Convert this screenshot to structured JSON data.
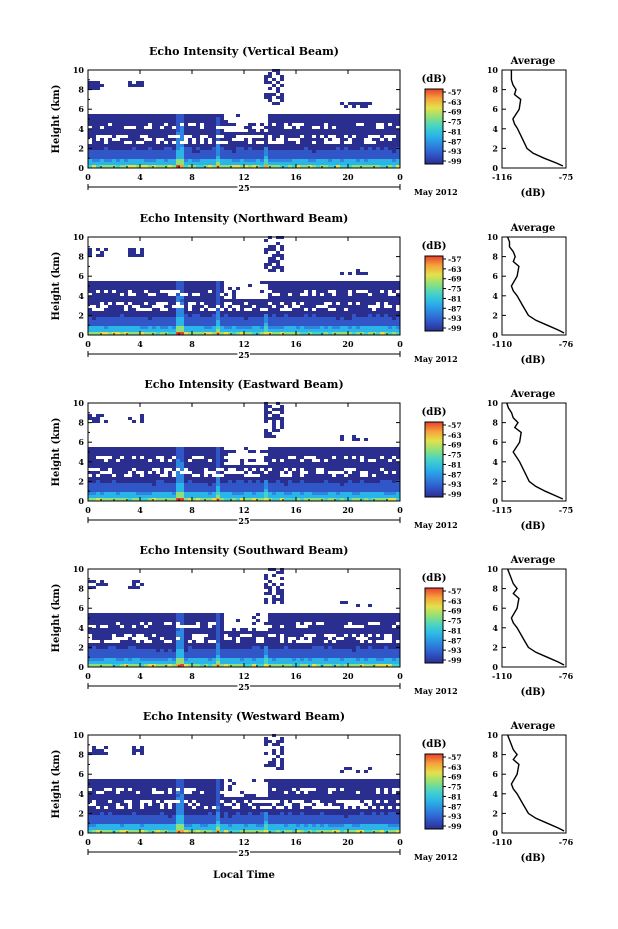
{
  "figure": {
    "ylabel": "Height (km)",
    "xlabel": "Local Time",
    "date_day": "25",
    "date_label": "May 2012",
    "colorbar_unit": "(dB)",
    "colorbar_ticks": [
      "-57",
      "-63",
      "-69",
      "-75",
      "-81",
      "-87",
      "-93",
      "-99"
    ],
    "average_title": "Average",
    "average_xlabel": "(dB)",
    "colormap": [
      "#2a2f8f",
      "#3056c8",
      "#2d86e0",
      "#2bb4e8",
      "#45d3c8",
      "#8fe07a",
      "#e4e14a",
      "#f5a23a",
      "#e8402e"
    ]
  },
  "chart_data": [
    {
      "type": "heatmap",
      "title": "Echo Intensity (Vertical Beam)",
      "xlabel": "Local Time",
      "ylabel": "Height (km)",
      "x_ticks": [
        "0",
        "4",
        "8",
        "12",
        "16",
        "20",
        "0"
      ],
      "y_ticks": [
        "0",
        "2",
        "4",
        "6",
        "8",
        "10"
      ],
      "xlim": [
        0,
        24
      ],
      "ylim": [
        0,
        10
      ],
      "colorbar_label": "(dB)",
      "colorbar_range": [
        -99,
        -57
      ],
      "grid": false
    },
    {
      "type": "line",
      "title": "Average",
      "xlabel": "(dB)",
      "x_ticks": [
        "-116",
        "-75"
      ],
      "xlim": [
        -116,
        -75
      ],
      "ylim": [
        0,
        10
      ],
      "x": [
        -110,
        -110,
        -110,
        -109,
        -107,
        -108,
        -104,
        -105,
        -109,
        -108,
        -106,
        -103,
        -100,
        -96,
        -89,
        -81,
        -77
      ],
      "y": [
        10,
        9.5,
        9,
        8.5,
        8,
        7.5,
        7,
        6,
        5,
        4.5,
        4,
        3,
        2,
        1.5,
        1,
        0.5,
        0.2
      ]
    },
    {
      "type": "heatmap",
      "title": "Echo Intensity (Northward Beam)",
      "xlabel": "Local Time",
      "ylabel": "Height (km)",
      "x_ticks": [
        "0",
        "4",
        "8",
        "12",
        "16",
        "20",
        "0"
      ],
      "y_ticks": [
        "0",
        "2",
        "4",
        "6",
        "8",
        "10"
      ],
      "xlim": [
        0,
        24
      ],
      "ylim": [
        0,
        10
      ],
      "colorbar_label": "(dB)",
      "colorbar_range": [
        -99,
        -57
      ],
      "grid": false
    },
    {
      "type": "line",
      "title": "Average",
      "xlabel": "(dB)",
      "x_ticks": [
        "-110",
        "-76"
      ],
      "xlim": [
        -110,
        -76
      ],
      "ylim": [
        0,
        10
      ],
      "x": [
        -107,
        -106,
        -106,
        -104,
        -103,
        -104,
        -101,
        -102,
        -105,
        -104,
        -102,
        -99,
        -96,
        -92,
        -86,
        -80,
        -77
      ],
      "y": [
        10,
        9.5,
        9,
        8.5,
        8,
        7.5,
        7,
        6,
        5,
        4.5,
        4,
        3,
        2,
        1.5,
        1,
        0.5,
        0.2
      ]
    },
    {
      "type": "heatmap",
      "title": "Echo Intensity (Eastward Beam)",
      "xlabel": "Local Time",
      "ylabel": "Height (km)",
      "x_ticks": [
        "0",
        "4",
        "8",
        "12",
        "16",
        "20",
        "0"
      ],
      "y_ticks": [
        "0",
        "2",
        "4",
        "6",
        "8",
        "10"
      ],
      "xlim": [
        0,
        24
      ],
      "ylim": [
        0,
        10
      ],
      "colorbar_label": "(dB)",
      "colorbar_range": [
        -99,
        -57
      ],
      "grid": false
    },
    {
      "type": "line",
      "title": "Average",
      "xlabel": "(dB)",
      "x_ticks": [
        "-115",
        "-75"
      ],
      "xlim": [
        -115,
        -75
      ],
      "ylim": [
        0,
        10
      ],
      "x": [
        -112,
        -111,
        -109,
        -108,
        -105,
        -107,
        -103,
        -104,
        -108,
        -106,
        -104,
        -101,
        -98,
        -94,
        -88,
        -81,
        -77
      ],
      "y": [
        10,
        9.5,
        9,
        8.5,
        8,
        7.5,
        7,
        6,
        5,
        4.5,
        4,
        3,
        2,
        1.5,
        1,
        0.5,
        0.2
      ]
    },
    {
      "type": "heatmap",
      "title": "Echo Intensity (Southward Beam)",
      "xlabel": "Local Time",
      "ylabel": "Height (km)",
      "x_ticks": [
        "0",
        "4",
        "8",
        "12",
        "16",
        "20",
        "0"
      ],
      "y_ticks": [
        "0",
        "2",
        "4",
        "6",
        "8",
        "10"
      ],
      "xlim": [
        0,
        24
      ],
      "ylim": [
        0,
        10
      ],
      "colorbar_label": "(dB)",
      "colorbar_range": [
        -99,
        -57
      ],
      "grid": false
    },
    {
      "type": "line",
      "title": "Average",
      "xlabel": "(dB)",
      "x_ticks": [
        "-110",
        "-76"
      ],
      "xlim": [
        -110,
        -76
      ],
      "ylim": [
        0,
        10
      ],
      "x": [
        -107,
        -106,
        -105,
        -104,
        -102,
        -104,
        -101,
        -102,
        -105,
        -104,
        -102,
        -99,
        -96,
        -92,
        -86,
        -80,
        -77
      ],
      "y": [
        10,
        9.5,
        9,
        8.5,
        8,
        7.5,
        7,
        6,
        5,
        4.5,
        4,
        3,
        2,
        1.5,
        1,
        0.5,
        0.2
      ]
    },
    {
      "type": "heatmap",
      "title": "Echo Intensity (Westward Beam)",
      "xlabel": "Local Time",
      "ylabel": "Height (km)",
      "x_ticks": [
        "0",
        "4",
        "8",
        "12",
        "16",
        "20",
        "0"
      ],
      "y_ticks": [
        "0",
        "2",
        "4",
        "6",
        "8",
        "10"
      ],
      "xlim": [
        0,
        24
      ],
      "ylim": [
        0,
        10
      ],
      "colorbar_label": "(dB)",
      "colorbar_range": [
        -99,
        -57
      ],
      "grid": false
    },
    {
      "type": "line",
      "title": "Average",
      "xlabel": "(dB)",
      "x_ticks": [
        "-110",
        "-76"
      ],
      "xlim": [
        -110,
        -76
      ],
      "ylim": [
        0,
        10
      ],
      "x": [
        -107,
        -106,
        -105,
        -104,
        -102,
        -104,
        -101,
        -102,
        -105,
        -104,
        -102,
        -99,
        -96,
        -92,
        -86,
        -80,
        -77
      ],
      "y": [
        10,
        9.5,
        9,
        8.5,
        8,
        7.5,
        7,
        6,
        5,
        4.5,
        4,
        3,
        2,
        1.5,
        1,
        0.5,
        0.2
      ]
    }
  ]
}
